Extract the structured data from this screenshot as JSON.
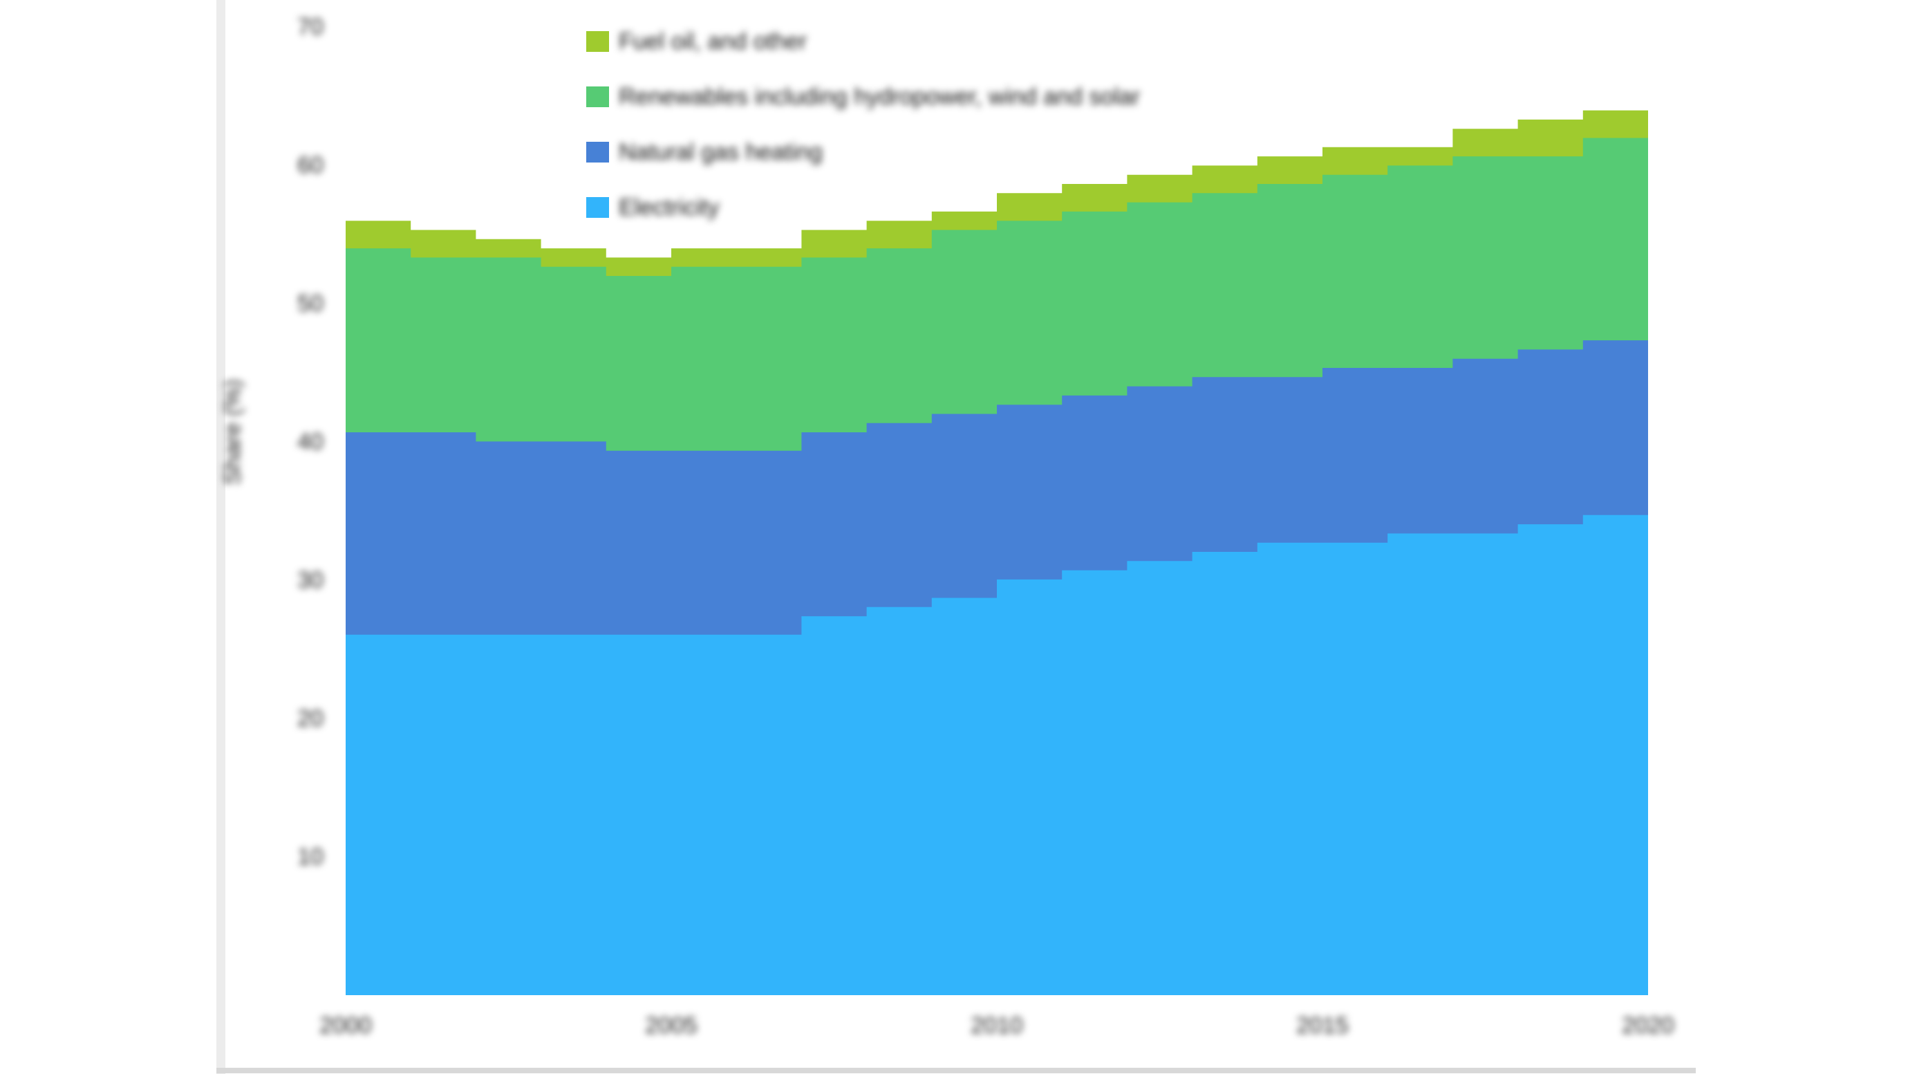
{
  "page": {
    "background": "#ffffff",
    "card_left_border_color": "#ececec",
    "card_bottom_border_color": "#d8d8d8"
  },
  "chart_data": {
    "type": "area",
    "stacked": true,
    "title": "",
    "xlabel": "",
    "ylabel": "Share (%)",
    "grid": false,
    "legend_position": "upper center inside plot",
    "xlim": [
      2000,
      2020
    ],
    "ylim": [
      0,
      72
    ],
    "xticks": [
      2000,
      2005,
      2010,
      2015,
      2020
    ],
    "yticks": [
      10,
      20,
      30,
      40,
      50,
      60,
      70
    ],
    "x": [
      2000,
      2001,
      2002,
      2003,
      2004,
      2005,
      2006,
      2007,
      2008,
      2009,
      2010,
      2011,
      2012,
      2013,
      2014,
      2015,
      2016,
      2017,
      2018,
      2019,
      2020
    ],
    "series": [
      {
        "name": "Electricity",
        "color": "#32b4fb",
        "values": [
          26.1,
          26.0,
          25.9,
          25.9,
          25.8,
          26.1,
          26.3,
          27.1,
          27.8,
          28.9,
          30.0,
          30.8,
          31.5,
          32.0,
          32.4,
          32.8,
          33.2,
          33.6,
          34.0,
          34.5,
          34.9
        ]
      },
      {
        "name": "Natural gas heating",
        "color": "#4781d6",
        "values": [
          14.9,
          14.5,
          14.1,
          13.8,
          13.4,
          13.4,
          13.3,
          13.3,
          13.3,
          13.1,
          12.9,
          12.7,
          12.5,
          12.5,
          12.5,
          12.5,
          12.4,
          12.5,
          12.5,
          12.6,
          12.6
        ]
      },
      {
        "name": "Renewables including hydropower, wind and solar",
        "color": "#56cb74",
        "values": [
          13.1,
          13.1,
          13.0,
          13.0,
          13.0,
          13.1,
          13.1,
          13.2,
          13.2,
          13.3,
          13.3,
          13.4,
          13.5,
          13.7,
          13.8,
          14.0,
          14.1,
          14.3,
          14.4,
          14.6,
          14.7
        ]
      },
      {
        "name": "Fuel oil, and other",
        "color": "#9fcb2e",
        "values": [
          1.8,
          1.7,
          1.6,
          1.5,
          1.4,
          1.5,
          1.5,
          1.6,
          1.6,
          1.6,
          1.6,
          1.7,
          1.7,
          1.8,
          1.8,
          1.9,
          1.9,
          2.0,
          2.1,
          2.3,
          2.5
        ]
      }
    ],
    "legend_order_top_to_bottom": [
      3,
      2,
      1,
      0
    ]
  }
}
